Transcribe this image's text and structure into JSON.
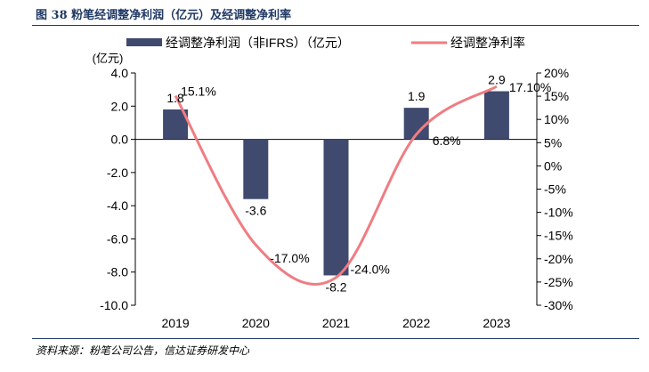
{
  "figure": {
    "title": "图 38  粉笔经调整净利润（亿元）及经调整净利率",
    "source": "资料来源：粉笔公司公告，信达证券研发中心"
  },
  "colors": {
    "bar": "#404a6e",
    "line": "#f07c82",
    "frame": "#1f3864"
  },
  "chart_data": {
    "type": "bar",
    "categories": [
      "2019",
      "2020",
      "2021",
      "2022",
      "2023"
    ],
    "series": [
      {
        "name": "经调整净利润（非IFRS）（亿元）",
        "type": "bar",
        "axis": "left",
        "values": [
          1.8,
          -3.6,
          -8.2,
          1.9,
          2.9
        ],
        "labels": [
          "1.8",
          "-3.6",
          "-8.2",
          "1.9",
          "2.9"
        ]
      },
      {
        "name": "经调整净利率",
        "type": "line",
        "axis": "right",
        "values": [
          15.1,
          -17.0,
          -24.0,
          6.8,
          17.1
        ],
        "labels": [
          "15.1%",
          "-17.0%",
          "-24.0%",
          "6.8%",
          "17.10%"
        ]
      }
    ],
    "left_axis": {
      "unit": "(亿元)",
      "ylim": [
        -10,
        4
      ],
      "ticks": [
        "4.0",
        "2.0",
        "0.0",
        "-2.0",
        "-4.0",
        "-6.0",
        "-8.0",
        "-10.0"
      ]
    },
    "right_axis": {
      "ylim": [
        -30,
        20
      ],
      "ticks": [
        "20%",
        "15%",
        "10%",
        "5%",
        "0%",
        "-5%",
        "-10%",
        "-15%",
        "-20%",
        "-25%",
        "-30%"
      ]
    },
    "legend": "top",
    "grid": false
  }
}
